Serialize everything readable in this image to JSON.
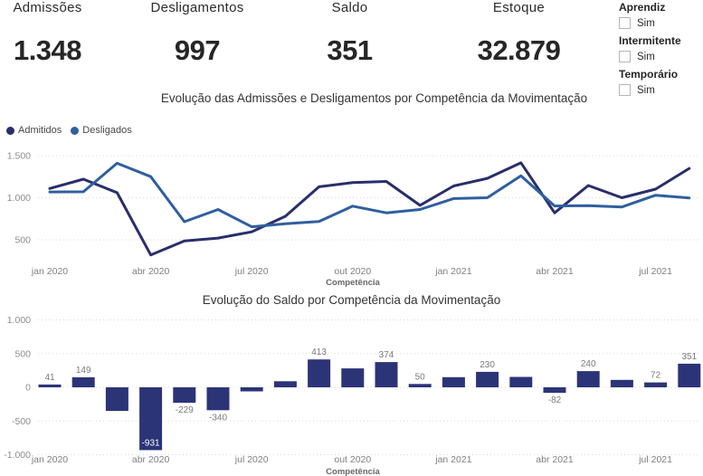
{
  "kpis": [
    {
      "label": "Admissões",
      "value": "1.348"
    },
    {
      "label": "Desligamentos",
      "value": "997"
    },
    {
      "label": "Saldo",
      "value": "351"
    },
    {
      "label": "Estoque",
      "value": "32.879"
    }
  ],
  "filters": [
    {
      "title": "Aprendiz",
      "option": "Sim",
      "checked": false
    },
    {
      "title": "Intermitente",
      "option": "Sim",
      "checked": false
    },
    {
      "title": "Temporário",
      "option": "Sim",
      "checked": false
    }
  ],
  "colors": {
    "admitidos": "#292e6a",
    "desligados": "#2f5f9e",
    "bar": "#2c3478",
    "grid": "#d8d8d8",
    "axis_text": "#8c8c8c",
    "title_text": "#333333"
  },
  "chart_data": [
    {
      "type": "line",
      "title": "Evolução das Admissões e Desligamentos por Competência da Movimentação",
      "xlabel": "Competência",
      "categories": [
        "jan 2020",
        "fev 2020",
        "mar 2020",
        "abr 2020",
        "mai 2020",
        "jun 2020",
        "jul 2020",
        "ago 2020",
        "set 2020",
        "out 2020",
        "nov 2020",
        "dez 2020",
        "jan 2021",
        "fev 2021",
        "mar 2021",
        "abr 2021",
        "mai 2021",
        "jun 2021",
        "jul 2021",
        "ago 2021"
      ],
      "x_tick_labels": [
        "jan 2020",
        "abr 2020",
        "jul 2020",
        "out 2020",
        "jan 2021",
        "abr 2021",
        "jul 2021"
      ],
      "x_tick_step": 3,
      "ytick_values": [
        500,
        1000,
        1500
      ],
      "ytick_labels": [
        "500",
        "1.000",
        "1.500"
      ],
      "ylim": [
        250,
        1560
      ],
      "grid": "dotted",
      "legend_position": "top-left",
      "series": [
        {
          "name": "Admitidos",
          "color": "#292e6a",
          "values": [
            1110,
            1220,
            1060,
            320,
            486,
            520,
            595,
            780,
            1130,
            1180,
            1194,
            910,
            1140,
            1230,
            1415,
            820,
            1145,
            1000,
            1102,
            1348
          ]
        },
        {
          "name": "Desligados",
          "color": "#2f5f9e",
          "values": [
            1069,
            1071,
            1410,
            1251,
            715,
            860,
            655,
            690,
            717,
            900,
            820,
            860,
            990,
            1000,
            1260,
            902,
            905,
            890,
            1030,
            997
          ]
        }
      ]
    },
    {
      "type": "bar",
      "title": "Evolução do Saldo por Competência da Movimentação",
      "xlabel": "Competência",
      "categories": [
        "jan 2020",
        "fev 2020",
        "mar 2020",
        "abr 2020",
        "mai 2020",
        "jun 2020",
        "jul 2020",
        "ago 2020",
        "set 2020",
        "out 2020",
        "nov 2020",
        "dez 2020",
        "jan 2021",
        "fev 2021",
        "mar 2021",
        "abr 2021",
        "mai 2021",
        "jun 2021",
        "jul 2021",
        "ago 2021"
      ],
      "x_tick_labels": [
        "jan 2020",
        "abr 2020",
        "jul 2020",
        "out 2020",
        "jan 2021",
        "abr 2021",
        "jul 2021"
      ],
      "x_tick_step": 3,
      "ytick_values": [
        -1000,
        -500,
        0,
        500,
        1000
      ],
      "ytick_labels": [
        "-1.000",
        "-500",
        "0",
        "500",
        "1.000"
      ],
      "ylim": [
        -1100,
        1100
      ],
      "grid": "dotted",
      "bar_color": "#2c3478",
      "values": [
        41,
        149,
        -350,
        -931,
        -229,
        -340,
        -60,
        90,
        413,
        280,
        374,
        50,
        150,
        230,
        155,
        -82,
        240,
        110,
        72,
        351
      ],
      "data_labels": [
        "41",
        "149",
        null,
        "-931",
        "-229",
        "-340",
        null,
        null,
        "413",
        null,
        "374",
        "50",
        null,
        "230",
        null,
        "-82",
        "240",
        null,
        "72",
        "351"
      ]
    }
  ]
}
